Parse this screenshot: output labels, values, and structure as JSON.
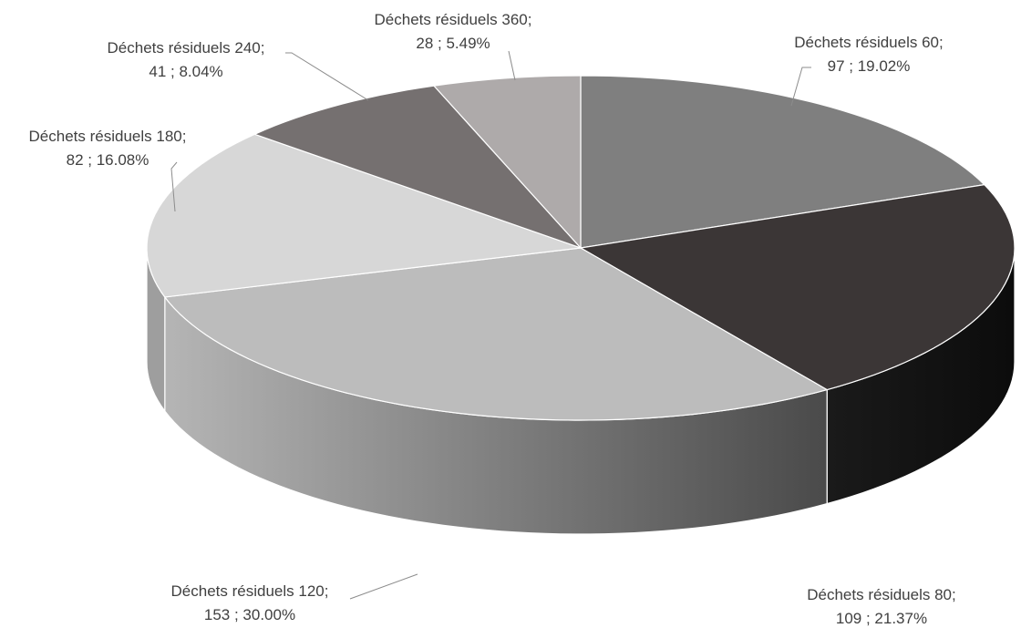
{
  "chart_data": {
    "type": "pie",
    "style": "3d",
    "slices": [
      {
        "name": "Déchets résiduels 60",
        "value": 97,
        "percent": "19.02%",
        "color": "#7f7f7f"
      },
      {
        "name": "Déchets résiduels 80",
        "value": 109,
        "percent": "21.37%",
        "color": "#3b3636"
      },
      {
        "name": "Déchets résiduels 120",
        "value": 153,
        "percent": "30.00%",
        "color": "#bcbcbc"
      },
      {
        "name": "Déchets résiduels 180",
        "value": 82,
        "percent": "16.08%",
        "color": "#d7d7d7"
      },
      {
        "name": "Déchets résiduels 240",
        "value": 41,
        "percent": "8.04%",
        "color": "#757070"
      },
      {
        "name": "Déchets résiduels 360",
        "value": 28,
        "percent": "5.49%",
        "color": "#aeaaaa"
      }
    ],
    "side_colors": {
      "Déchets résiduels 80": "#151515",
      "Déchets résiduels 120": "#7a7a7a",
      "Déchets résiduels 180": "#9e9e9e"
    }
  }
}
